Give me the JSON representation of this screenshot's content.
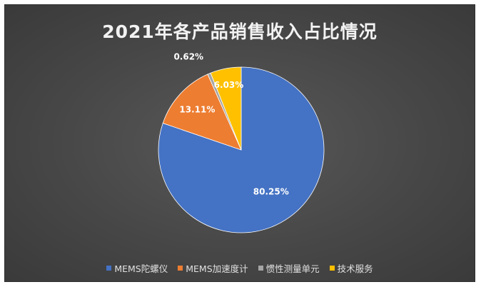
{
  "chart_data": {
    "type": "pie",
    "title": "2021年各产品销售收入占比情况",
    "categories": [
      "MEMS陀螺仪",
      "MEMS加速度计",
      "惯性测量单元",
      "技术服务"
    ],
    "values": [
      80.25,
      13.11,
      0.62,
      6.03
    ],
    "value_labels": [
      "80.25%",
      "13.11%",
      "0.62%",
      "6.03%"
    ],
    "colors": [
      "#4472c4",
      "#ed7d31",
      "#a5a5a5",
      "#ffc000"
    ],
    "legend_position": "bottom",
    "start_angle": "12 o'clock",
    "direction": "clockwise"
  }
}
